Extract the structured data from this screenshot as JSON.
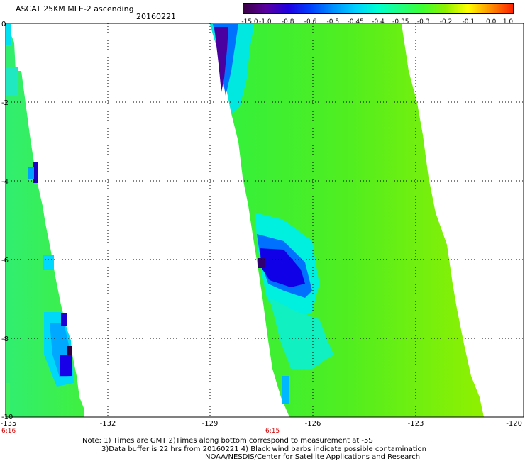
{
  "header": {
    "title": "ASCAT 25KM MLE-2 ascending",
    "date": "20160221"
  },
  "colorbar": {
    "labels": [
      "-15.0",
      "-1.0",
      "-0.8",
      "-0.6",
      "-0.5",
      "-0.45",
      "-0.4",
      "-0.35",
      "-0.3",
      "-0.2",
      "-0.1",
      "0.0",
      "1.0"
    ],
    "colors": [
      "#3a0044",
      "#5a00a0",
      "#2000e0",
      "#0040ff",
      "#0090ff",
      "#00d0ff",
      "#00ffd0",
      "#20ff80",
      "#40ff30",
      "#90f000",
      "#ffff00",
      "#ff9000",
      "#ff2000"
    ]
  },
  "axes": {
    "x_labels": [
      "-135",
      "-132",
      "-129",
      "-126",
      "-123",
      "-120"
    ],
    "y_labels": [
      "0",
      "-2",
      "-4",
      "-6",
      "-8",
      "-10"
    ],
    "x_range": [
      -135,
      -120
    ],
    "y_range": [
      -10,
      0
    ]
  },
  "times": {
    "left_swath": "6:16",
    "right_swath": "6:15"
  },
  "notes": {
    "line1": "Note: 1) Times are GMT 2)Times along bottom correspond to measurement at -5S",
    "line2": "3)Data buffer is 22 hrs from 20160221 4) Black wind barbs indicate possible contamination",
    "line3": "NOAA/NESDIS/Center for Satellite Applications and Research"
  }
}
